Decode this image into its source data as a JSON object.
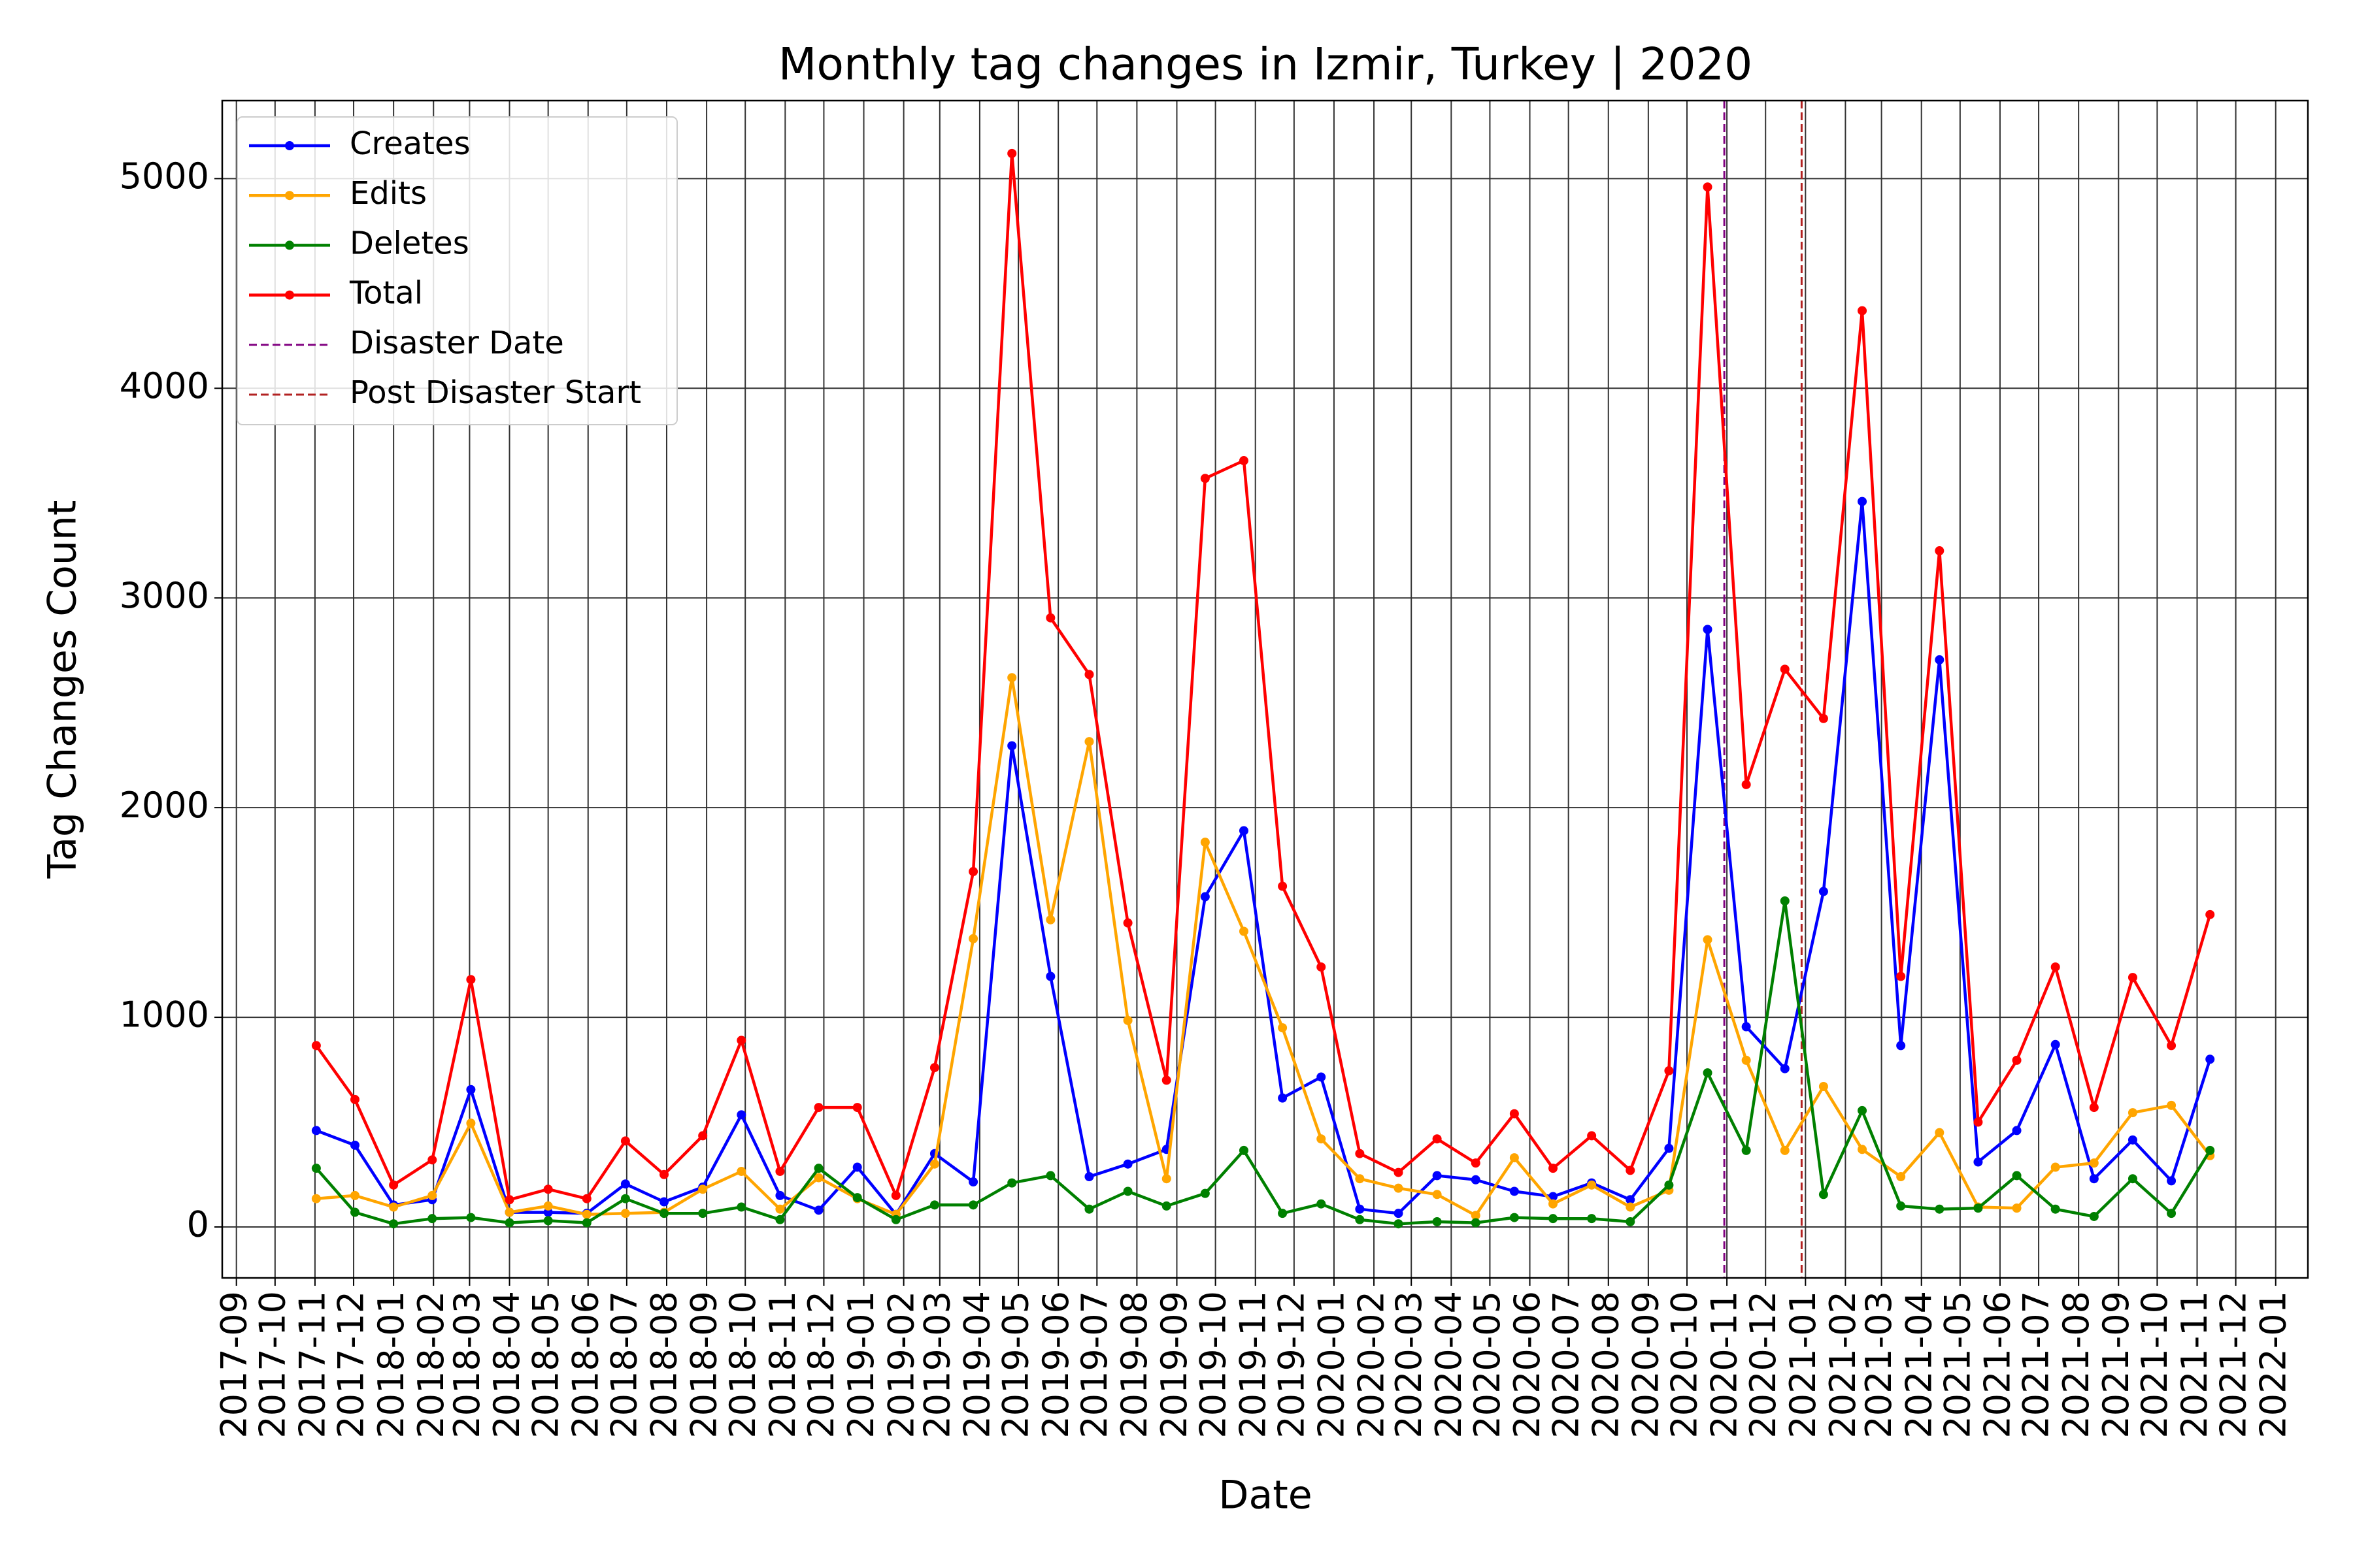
{
  "chart_data": {
    "type": "line",
    "title": "Monthly tag changes in Izmir, Turkey | 2020",
    "x_label": "Date",
    "y_label": "Tag Changes Count",
    "x": [
      "2017-11-02",
      "2017-12-02",
      "2018-01-01",
      "2018-01-31",
      "2018-03-02",
      "2018-04-01",
      "2018-05-01",
      "2018-05-31",
      "2018-06-30",
      "2018-07-30",
      "2018-08-29",
      "2018-09-28",
      "2018-10-28",
      "2018-11-27",
      "2018-12-27",
      "2019-01-26",
      "2019-02-25",
      "2019-03-27",
      "2019-04-26",
      "2019-05-26",
      "2019-06-25",
      "2019-07-25",
      "2019-08-24",
      "2019-09-23",
      "2019-10-23",
      "2019-11-22",
      "2019-12-22",
      "2020-01-21",
      "2020-02-20",
      "2020-03-21",
      "2020-04-20",
      "2020-05-20",
      "2020-06-19",
      "2020-07-19",
      "2020-08-18",
      "2020-09-17",
      "2020-10-17",
      "2020-11-16",
      "2020-12-16",
      "2021-01-15",
      "2021-02-14",
      "2021-03-16",
      "2021-04-15",
      "2021-05-15",
      "2021-06-14",
      "2021-07-14",
      "2021-08-13",
      "2021-09-12",
      "2021-10-12",
      "2021-11-11"
    ],
    "series": [
      {
        "name": "Creates",
        "color": "#0000ff",
        "values": [
          460,
          390,
          105,
          130,
          655,
          70,
          70,
          65,
          205,
          120,
          190,
          535,
          150,
          80,
          285,
          60,
          350,
          215,
          2295,
          1195,
          240,
          300,
          370,
          1575,
          1890,
          615,
          715,
          85,
          65,
          245,
          225,
          170,
          145,
          210,
          130,
          375,
          2850,
          955,
          755,
          1600,
          3460,
          865,
          2705,
          310,
          460,
          870,
          230,
          415,
          220,
          800
        ]
      },
      {
        "name": "Edits",
        "color": "#ffa500",
        "values": [
          135,
          150,
          95,
          150,
          495,
          70,
          100,
          60,
          65,
          70,
          180,
          265,
          85,
          235,
          135,
          60,
          300,
          1375,
          2620,
          1465,
          2315,
          985,
          230,
          1835,
          1410,
          950,
          420,
          230,
          185,
          155,
          55,
          330,
          110,
          200,
          95,
          175,
          1370,
          795,
          365,
          670,
          370,
          240,
          450,
          95,
          90,
          285,
          305,
          545,
          580,
          340
        ]
      },
      {
        "name": "Deletes",
        "color": "#008000",
        "values": [
          280,
          70,
          15,
          40,
          45,
          20,
          30,
          20,
          135,
          65,
          65,
          95,
          35,
          280,
          140,
          35,
          105,
          105,
          210,
          245,
          85,
          170,
          100,
          160,
          365,
          65,
          110,
          35,
          15,
          25,
          20,
          45,
          40,
          40,
          25,
          200,
          735,
          365,
          1555,
          155,
          555,
          100,
          85,
          90,
          245,
          85,
          50,
          230,
          65,
          365
        ]
      },
      {
        "name": "Total",
        "color": "#ff0000",
        "values": [
          865,
          608,
          200,
          320,
          1180,
          130,
          180,
          135,
          410,
          250,
          435,
          890,
          265,
          570,
          570,
          150,
          760,
          1695,
          5120,
          2905,
          2635,
          1450,
          700,
          3570,
          3655,
          1625,
          1240,
          350,
          260,
          420,
          305,
          540,
          280,
          435,
          270,
          745,
          4960,
          2110,
          2660,
          2425,
          4370,
          1195,
          3225,
          500,
          795,
          1240,
          570,
          1190,
          865,
          1490
        ]
      }
    ],
    "vlines": [
      {
        "name": "Disaster Date",
        "x": "2020-10-30",
        "color": "#800080"
      },
      {
        "name": "Post Disaster Start",
        "x": "2020-12-29",
        "color": "#b22222"
      }
    ],
    "xlim": [
      "2017-08-21",
      "2022-01-26"
    ],
    "xticks": [
      "2017-09",
      "2017-10",
      "2017-11",
      "2017-12",
      "2018-01",
      "2018-02",
      "2018-03",
      "2018-04",
      "2018-05",
      "2018-06",
      "2018-07",
      "2018-08",
      "2018-09",
      "2018-10",
      "2018-11",
      "2018-12",
      "2019-01",
      "2019-02",
      "2019-03",
      "2019-04",
      "2019-05",
      "2019-06",
      "2019-07",
      "2019-08",
      "2019-09",
      "2019-10",
      "2019-11",
      "2019-12",
      "2020-01",
      "2020-02",
      "2020-03",
      "2020-04",
      "2020-05",
      "2020-06",
      "2020-07",
      "2020-08",
      "2020-09",
      "2020-10",
      "2020-11",
      "2020-12",
      "2021-01",
      "2021-02",
      "2021-03",
      "2021-04",
      "2021-05",
      "2021-06",
      "2021-07",
      "2021-08",
      "2021-09",
      "2021-10",
      "2021-11",
      "2021-12",
      "2022-01"
    ],
    "ylim": [
      -243,
      5372
    ],
    "yticks": [
      0,
      1000,
      2000,
      3000,
      4000,
      5000
    ],
    "grid": true,
    "legend": "upper left"
  }
}
